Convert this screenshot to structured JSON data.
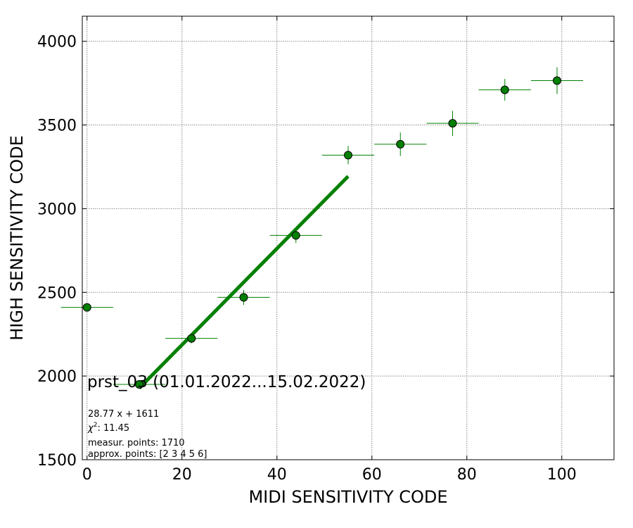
{
  "chart_data": {
    "type": "scatter",
    "xlabel": "MIDI SENSITIVITY CODE",
    "ylabel": "HIGH SENSITIVITY CODE",
    "xlim": [
      -1,
      111
    ],
    "ylim": [
      1500,
      4150
    ],
    "xticks": [
      0,
      20,
      40,
      60,
      80,
      100
    ],
    "yticks": [
      1500,
      2000,
      2500,
      3000,
      3500,
      4000
    ],
    "grid": true,
    "points": [
      {
        "x": 0,
        "y": 2410,
        "xerr": 5.5,
        "yerr": 0
      },
      {
        "x": 11,
        "y": 1950,
        "xerr": 5.5,
        "yerr": 15
      },
      {
        "x": 22,
        "y": 2225,
        "xerr": 5.5,
        "yerr": 30
      },
      {
        "x": 33,
        "y": 2470,
        "xerr": 5.5,
        "yerr": 45
      },
      {
        "x": 44,
        "y": 2840,
        "xerr": 5.5,
        "yerr": 45
      },
      {
        "x": 55,
        "y": 3320,
        "xerr": 5.5,
        "yerr": 55
      },
      {
        "x": 66,
        "y": 3385,
        "xerr": 5.5,
        "yerr": 70
      },
      {
        "x": 77,
        "y": 3510,
        "xerr": 5.5,
        "yerr": 75
      },
      {
        "x": 88,
        "y": 3710,
        "xerr": 5.5,
        "yerr": 65
      },
      {
        "x": 99,
        "y": 3765,
        "xerr": 5.5,
        "yerr": 80
      }
    ],
    "fit": {
      "slope": 28.77,
      "intercept": 1611,
      "x_range": [
        11,
        55
      ]
    },
    "marker_color": "#008000",
    "fit_color": "#008000",
    "annotation_title": "prst_03 (01.01.2022...15.02.2022)",
    "annotation_lines": [
      "28.77 x + 1611",
      "",
      "measur. points: 1710",
      "approx. points: [2 3 4 5 6]"
    ],
    "chi2_label": "χ",
    "chi2_value": ": 11.45"
  }
}
